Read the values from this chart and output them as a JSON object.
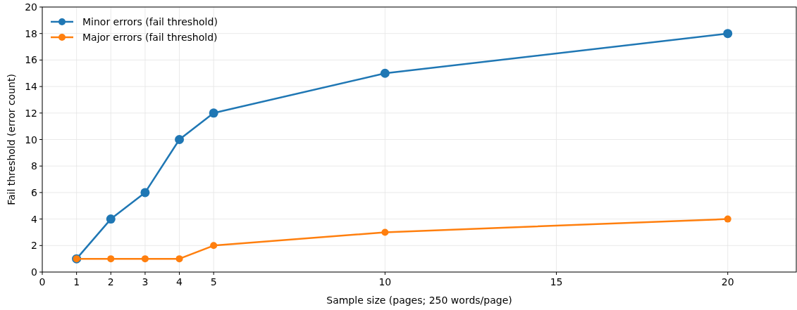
{
  "chart_data": {
    "type": "line",
    "xlabel": "Sample size (pages; 250 words/page)",
    "ylabel": "Fail threshold (error count)",
    "series": [
      {
        "name": "Minor errors (fail threshold)",
        "color": "#1f77b4",
        "x": [
          1,
          2,
          3,
          4,
          5,
          10,
          20
        ],
        "values": [
          1,
          4,
          6,
          10,
          12,
          15,
          18
        ]
      },
      {
        "name": "Major errors (fail threshold)",
        "color": "#ff7f0e",
        "x": [
          1,
          2,
          3,
          4,
          5,
          10,
          20
        ],
        "values": [
          1,
          1,
          1,
          1,
          2,
          3,
          4
        ]
      }
    ],
    "xlim": [
      0,
      22
    ],
    "xticks": [
      0,
      1,
      2,
      3,
      4,
      5,
      10,
      15,
      20
    ],
    "ylim": [
      0,
      20
    ],
    "yticks": [
      0,
      2,
      4,
      6,
      8,
      10,
      12,
      14,
      16,
      18,
      20
    ],
    "grid": true,
    "legend": "top left",
    "marker": "circle",
    "line_style": "solid"
  }
}
